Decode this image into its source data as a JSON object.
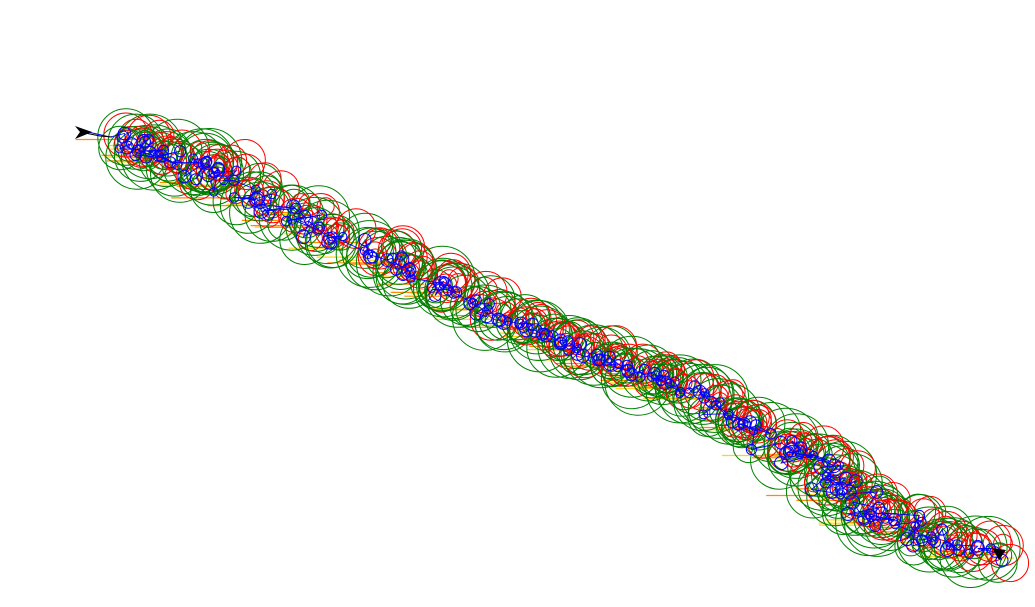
{
  "trace": {
    "colors": {
      "path": "#0000ff",
      "small_marker": "#0000ff",
      "large_marker_a": "#008000",
      "large_marker_b": "#ff0000",
      "tick_a": "#ff8c00",
      "tick_b": "#ffd700",
      "arrow": "#000000"
    },
    "markers": {
      "start": "arrow-right-icon",
      "end": "arrow-down-icon"
    }
  }
}
